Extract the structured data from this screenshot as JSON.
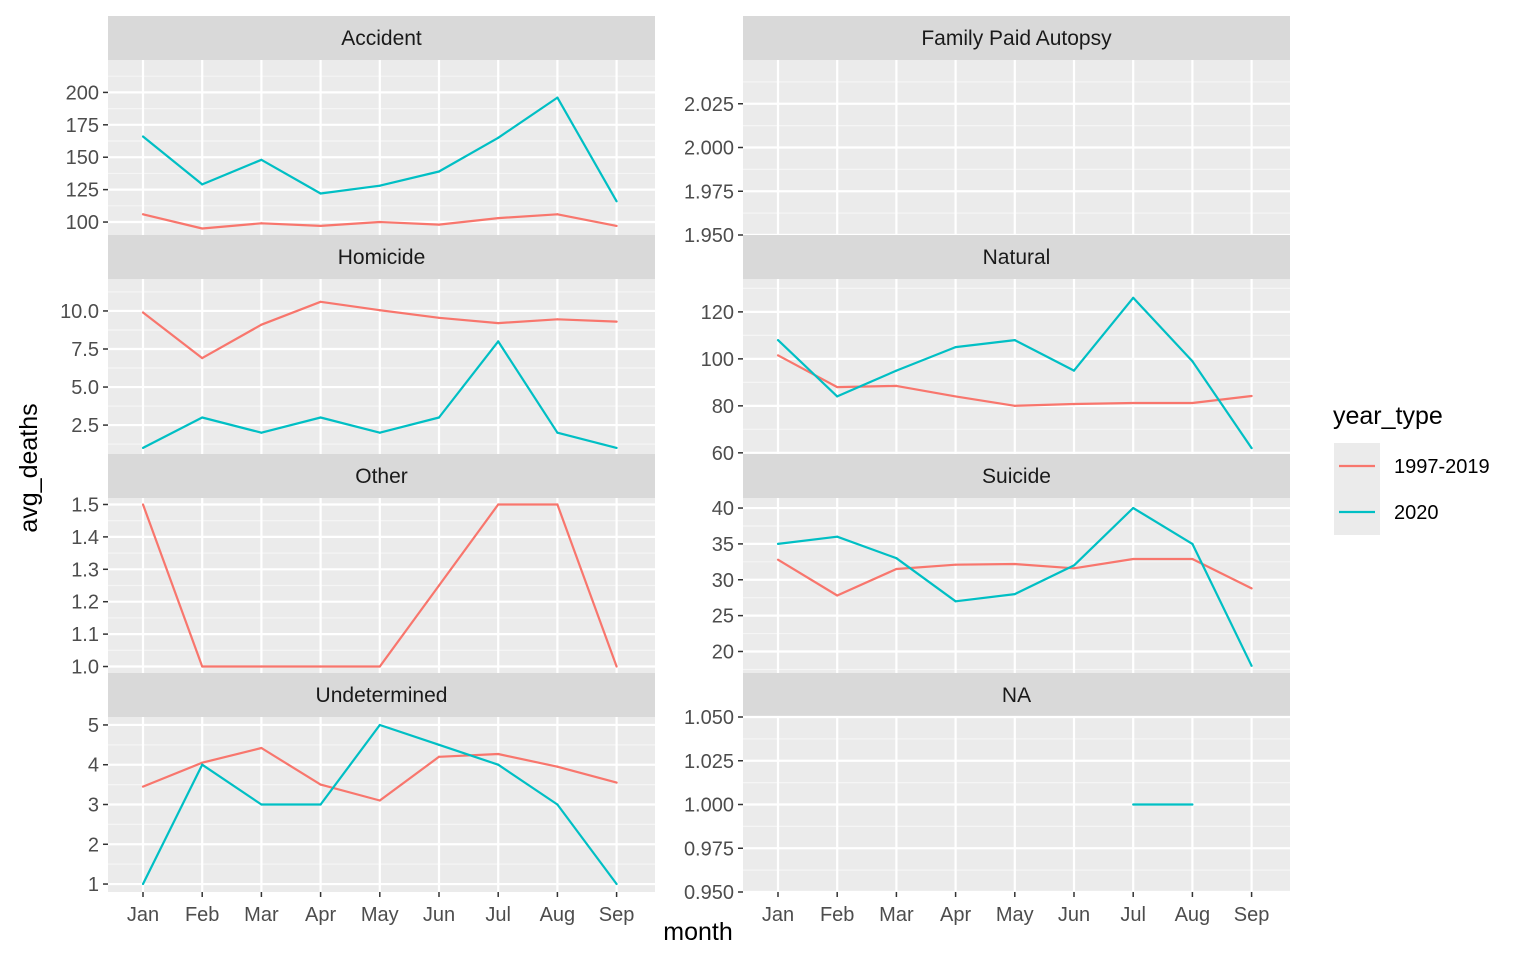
{
  "chart_data": {
    "type": "line",
    "facet_layout": "grid-4x2",
    "xlabel": "month",
    "ylabel": "avg_deaths",
    "categories": [
      "Jan",
      "Feb",
      "Mar",
      "Apr",
      "May",
      "Jun",
      "Jul",
      "Aug",
      "Sep"
    ],
    "legend": {
      "title": "year_type",
      "position": "right",
      "entries": [
        {
          "name": "1997-2019",
          "color": "#F8766D"
        },
        {
          "name": "2020",
          "color": "#00BFC4"
        }
      ]
    },
    "panels": [
      {
        "title": "Accident",
        "ylim": [
          90,
          225
        ],
        "yticks": [
          {
            "v": 100,
            "label": "100"
          },
          {
            "v": 125,
            "label": "125"
          },
          {
            "v": 150,
            "label": "150"
          },
          {
            "v": 175,
            "label": "175"
          },
          {
            "v": 200,
            "label": "200"
          }
        ],
        "series": [
          {
            "name": "1997-2019",
            "color": "#F8766D",
            "values": [
              106,
              95,
              99,
              97,
              100,
              98,
              103,
              106,
              97
            ]
          },
          {
            "name": "2020",
            "color": "#00BFC4",
            "values": [
              166,
              129,
              148,
              122,
              128,
              139,
              165,
              196,
              116
            ]
          }
        ]
      },
      {
        "title": "Family Paid Autopsy",
        "ylim": [
          1.95,
          2.05
        ],
        "yticks": [
          {
            "v": 1.95,
            "label": "1.950"
          },
          {
            "v": 1.975,
            "label": "1.975"
          },
          {
            "v": 2.0,
            "label": "2.000"
          },
          {
            "v": 2.025,
            "label": "2.025"
          }
        ],
        "series": []
      },
      {
        "title": "Homicide",
        "ylim": [
          0.6,
          12.1
        ],
        "yticks": [
          {
            "v": 2.5,
            "label": "2.5"
          },
          {
            "v": 5.0,
            "label": "5.0"
          },
          {
            "v": 7.5,
            "label": "7.5"
          },
          {
            "v": 10.0,
            "label": "10.0"
          }
        ],
        "series": [
          {
            "name": "1997-2019",
            "color": "#F8766D",
            "values": [
              9.9,
              6.9,
              9.1,
              10.6,
              10.05,
              9.55,
              9.2,
              9.45,
              9.3
            ]
          },
          {
            "name": "2020",
            "color": "#00BFC4",
            "values": [
              1,
              3,
              2,
              3,
              2,
              3,
              8,
              2,
              1
            ]
          }
        ]
      },
      {
        "title": "Natural",
        "ylim": [
          59.5,
          134
        ],
        "yticks": [
          {
            "v": 60,
            "label": "60"
          },
          {
            "v": 80,
            "label": "80"
          },
          {
            "v": 100,
            "label": "100"
          },
          {
            "v": 120,
            "label": "120"
          }
        ],
        "series": [
          {
            "name": "1997-2019",
            "color": "#F8766D",
            "values": [
              101.5,
              88,
              88.5,
              84,
              80,
              80.8,
              81.2,
              81.2,
              84.2
            ]
          },
          {
            "name": "2020",
            "color": "#00BFC4",
            "values": [
              108,
              84,
              95,
              105,
              108,
              95,
              126,
              99,
              62
            ]
          }
        ]
      },
      {
        "title": "Other",
        "ylim": [
          0.98,
          1.52
        ],
        "yticks": [
          {
            "v": 1.0,
            "label": "1.0"
          },
          {
            "v": 1.1,
            "label": "1.1"
          },
          {
            "v": 1.2,
            "label": "1.2"
          },
          {
            "v": 1.3,
            "label": "1.3"
          },
          {
            "v": 1.4,
            "label": "1.4"
          },
          {
            "v": 1.5,
            "label": "1.5"
          }
        ],
        "series": [
          {
            "name": "1997-2019",
            "color": "#F8766D",
            "values": [
              1.5,
              1.0,
              1.0,
              1.0,
              1.0,
              1.25,
              1.5,
              1.5,
              1.0
            ]
          }
        ]
      },
      {
        "title": "Suicide",
        "ylim": [
          17,
          41.4
        ],
        "yticks": [
          {
            "v": 20,
            "label": "20"
          },
          {
            "v": 25,
            "label": "25"
          },
          {
            "v": 30,
            "label": "30"
          },
          {
            "v": 35,
            "label": "35"
          },
          {
            "v": 40,
            "label": "40"
          }
        ],
        "series": [
          {
            "name": "1997-2019",
            "color": "#F8766D",
            "values": [
              32.8,
              27.8,
              31.5,
              32.1,
              32.2,
              31.6,
              32.9,
              32.9,
              28.8
            ]
          },
          {
            "name": "2020",
            "color": "#00BFC4",
            "values": [
              35,
              36,
              33,
              27,
              28,
              32,
              40,
              35,
              18
            ]
          }
        ]
      },
      {
        "title": "Undetermined",
        "ylim": [
          0.8,
          5.2
        ],
        "yticks": [
          {
            "v": 1,
            "label": "1"
          },
          {
            "v": 2,
            "label": "2"
          },
          {
            "v": 3,
            "label": "3"
          },
          {
            "v": 4,
            "label": "4"
          },
          {
            "v": 5,
            "label": "5"
          }
        ],
        "series": [
          {
            "name": "1997-2019",
            "color": "#F8766D",
            "values": [
              3.45,
              4.05,
              4.42,
              3.5,
              3.1,
              4.2,
              4.27,
              3.95,
              3.55
            ]
          },
          {
            "name": "2020",
            "color": "#00BFC4",
            "values": [
              1,
              4,
              3,
              3,
              5,
              4.5,
              4,
              3,
              1
            ]
          }
        ]
      },
      {
        "title": "NA",
        "ylim": [
          0.95,
          1.05
        ],
        "yticks": [
          {
            "v": 0.95,
            "label": "0.950"
          },
          {
            "v": 0.975,
            "label": "0.975"
          },
          {
            "v": 1.0,
            "label": "1.000"
          },
          {
            "v": 1.025,
            "label": "1.025"
          },
          {
            "v": 1.05,
            "label": "1.050"
          }
        ],
        "series": [
          {
            "name": "2020",
            "color": "#00BFC4",
            "values": [
              null,
              null,
              null,
              null,
              null,
              null,
              1,
              1,
              null
            ]
          }
        ]
      }
    ]
  }
}
